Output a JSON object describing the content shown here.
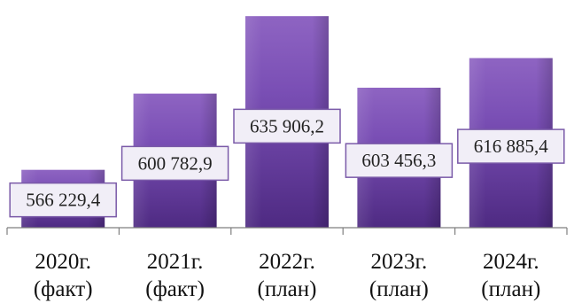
{
  "chart_data": {
    "type": "bar",
    "categories": [
      [
        "2020г.",
        "(факт)"
      ],
      [
        "2021г.",
        "(факт)"
      ],
      [
        "2022г.",
        "(план)"
      ],
      [
        "2023г.",
        "(план)"
      ],
      [
        "2024г.",
        "(план)"
      ]
    ],
    "values": [
      566229.4,
      600782.9,
      635906.2,
      603456.3,
      616885.4
    ],
    "data_labels": [
      "566 229,4",
      "600 782,9",
      "635 906,2",
      "603 456,3",
      "616 885,4"
    ],
    "title": "",
    "xlabel": "",
    "ylabel": "",
    "ylim": [
      540000,
      640000
    ],
    "grid": false,
    "legend": "none",
    "colors": {
      "bar_top": "#8e64c2",
      "bar_mid": "#7a4fb5",
      "bar_bottom": "#4e2a82",
      "label_fill": "#f1eef7",
      "label_border": "#7a5aa8",
      "axis": "#7f7f7f"
    }
  }
}
